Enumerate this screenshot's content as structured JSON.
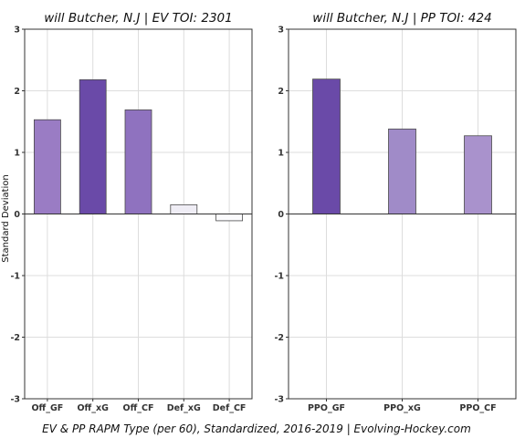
{
  "chart_data": [
    {
      "type": "bar",
      "title": "will Butcher, N.J  |  EV TOI: 2301",
      "ylabel": "Standard Deviation",
      "xlabel": "",
      "ylim": [
        -3,
        3
      ],
      "yticks": [
        -3,
        -2,
        -1,
        0,
        1,
        2,
        3
      ],
      "grid": true,
      "categories": [
        "Off_GF",
        "Off_xG",
        "Off_CF",
        "Def_xG",
        "Def_CF"
      ],
      "values": [
        1.53,
        2.18,
        1.69,
        0.15,
        -0.11
      ],
      "colors": [
        "#9a7cc4",
        "#6a4aa8",
        "#8f72bf",
        "#efedf5",
        "#fbfbfd"
      ]
    },
    {
      "type": "bar",
      "title": "will Butcher, N.J  |  PP TOI: 424",
      "ylabel": "",
      "xlabel": "",
      "ylim": [
        -3,
        3
      ],
      "yticks": [
        -3,
        -2,
        -1,
        0,
        1,
        2,
        3
      ],
      "grid": true,
      "categories": [
        "PPO_GF",
        "PPO_xG",
        "PPO_CF"
      ],
      "values": [
        2.19,
        1.38,
        1.27
      ],
      "colors": [
        "#6a4aa8",
        "#a08bc8",
        "#a992cc"
      ]
    }
  ],
  "caption": "EV & PP RAPM Type (per 60), Standardized, 2016-2019    |    Evolving-Hockey.com"
}
